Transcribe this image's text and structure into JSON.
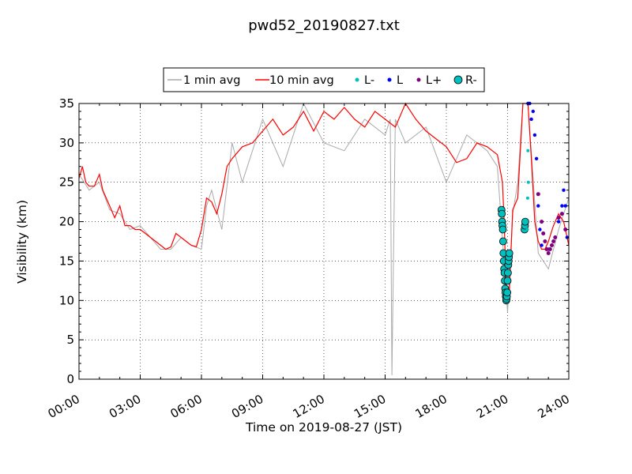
{
  "chart_data": {
    "type": "line",
    "title": "pwd52_20190827.txt",
    "xlabel": "Time on 2019-08-27 (JST)",
    "ylabel": "Visibility (km)",
    "xlim": [
      "00:00",
      "24:00"
    ],
    "ylim": [
      0,
      35
    ],
    "grid": true,
    "legend_position": "top-center",
    "x_ticks": [
      "00:00",
      "03:00",
      "06:00",
      "09:00",
      "12:00",
      "15:00",
      "18:00",
      "21:00",
      "24:00"
    ],
    "y_ticks": [
      "0",
      "5",
      "10",
      "15",
      "20",
      "25",
      "30",
      "35"
    ],
    "legend": [
      "1 min avg",
      "10 min avg",
      "L-",
      "L",
      "L+",
      "R-"
    ],
    "colors": {
      "one_min": "#a9a9a9",
      "ten_min": "#ff0000",
      "L_minus": "#00bfbf",
      "L": "#0000ff",
      "L_plus": "#800080",
      "R_minus": "#00bfbf"
    },
    "series": [
      {
        "name": "10 min avg",
        "x": [
          "00:00",
          "00:10",
          "00:20",
          "00:30",
          "00:45",
          "01:00",
          "01:10",
          "01:30",
          "01:45",
          "02:00",
          "02:15",
          "02:30",
          "02:45",
          "03:00",
          "03:15",
          "03:30",
          "03:45",
          "04:00",
          "04:15",
          "04:30",
          "04:45",
          "05:00",
          "05:15",
          "05:30",
          "05:45",
          "06:00",
          "06:15",
          "06:30",
          "06:45",
          "07:00",
          "07:15",
          "07:30",
          "08:00",
          "08:30",
          "09:00",
          "09:30",
          "10:00",
          "10:30",
          "11:00",
          "11:30",
          "12:00",
          "12:30",
          "13:00",
          "13:30",
          "14:00",
          "14:30",
          "15:00",
          "15:30",
          "16:00",
          "16:30",
          "17:00",
          "17:30",
          "18:00",
          "18:30",
          "19:00",
          "19:30",
          "20:00",
          "20:30",
          "20:45",
          "20:50",
          "20:55",
          "21:00",
          "21:05",
          "21:15",
          "21:30",
          "21:45",
          "22:00",
          "22:10",
          "22:20",
          "22:30",
          "22:40",
          "22:50",
          "23:00",
          "23:15",
          "23:30",
          "23:45",
          "24:00"
        ],
        "values": [
          25.5,
          27.0,
          25.0,
          24.5,
          24.5,
          26.0,
          24.0,
          22.0,
          20.5,
          22.0,
          19.5,
          19.5,
          19.0,
          19.0,
          18.5,
          18.0,
          17.5,
          17.0,
          16.5,
          16.8,
          18.5,
          18.0,
          17.5,
          17.0,
          16.8,
          19.0,
          23.0,
          22.5,
          21.0,
          23.5,
          27.0,
          28.0,
          29.5,
          30.0,
          31.5,
          33.0,
          31.0,
          32.0,
          34.0,
          31.5,
          34.0,
          33.0,
          34.5,
          33.0,
          32.0,
          34.0,
          33.0,
          32.0,
          35.0,
          33.0,
          31.5,
          30.5,
          29.5,
          27.5,
          28.0,
          30.0,
          29.5,
          28.5,
          25.0,
          20.0,
          13.0,
          10.5,
          11.0,
          21.5,
          23.0,
          35.0,
          35.0,
          28.0,
          20.0,
          17.5,
          16.5,
          16.5,
          17.5,
          19.5,
          21.0,
          20.0,
          17.0
        ]
      },
      {
        "name": "1 min avg",
        "x": [
          "00:00",
          "00:30",
          "01:00",
          "01:30",
          "02:00",
          "02:30",
          "03:00",
          "03:30",
          "04:00",
          "04:30",
          "05:00",
          "05:30",
          "06:00",
          "06:15",
          "06:30",
          "07:00",
          "07:30",
          "08:00",
          "09:00",
          "10:00",
          "11:00",
          "12:00",
          "13:00",
          "14:00",
          "15:00",
          "15:15",
          "15:20",
          "15:30",
          "16:00",
          "17:00",
          "18:00",
          "19:00",
          "20:00",
          "20:30",
          "21:00",
          "21:15",
          "21:30",
          "21:45",
          "22:00",
          "22:30",
          "23:00",
          "23:30",
          "24:00"
        ],
        "values": [
          26.0,
          24.0,
          25.0,
          21.5,
          21.0,
          19.0,
          19.5,
          18.0,
          16.5,
          16.5,
          18.0,
          17.0,
          16.5,
          22.0,
          24.0,
          19.0,
          30.0,
          25.0,
          33.0,
          27.0,
          35.0,
          30.0,
          29.0,
          33.0,
          31.0,
          33.0,
          0.5,
          33.0,
          30.0,
          32.0,
          25.0,
          31.0,
          29.0,
          27.0,
          8.5,
          21.0,
          25.0,
          35.0,
          35.0,
          16.0,
          14.0,
          19.0,
          23.0
        ]
      },
      {
        "name": "L-",
        "x": [
          "21:58",
          "21:59",
          "22:00",
          "22:01"
        ],
        "values": [
          19.0,
          23.0,
          29.0,
          25.0
        ]
      },
      {
        "name": "L",
        "x": [
          "22:00",
          "22:05",
          "22:10",
          "22:15",
          "22:20",
          "22:25",
          "22:30",
          "22:35",
          "22:40",
          "23:00",
          "23:10",
          "23:20",
          "23:30",
          "23:40",
          "23:45",
          "23:50",
          "23:55"
        ],
        "values": [
          35.0,
          35.0,
          33.0,
          34.0,
          31.0,
          28.0,
          22.0,
          19.0,
          17.0,
          16.5,
          17.0,
          18.0,
          20.0,
          22.0,
          24.0,
          22.0,
          18.0
        ]
      },
      {
        "name": "L+",
        "x": [
          "22:30",
          "22:40",
          "22:45",
          "22:50",
          "22:55",
          "23:00",
          "23:05",
          "23:10",
          "23:15",
          "23:20",
          "23:30",
          "23:40",
          "23:50"
        ],
        "values": [
          23.5,
          20.0,
          18.5,
          17.5,
          16.5,
          16.0,
          16.5,
          17.0,
          17.5,
          18.0,
          20.5,
          21.0,
          19.0
        ]
      },
      {
        "name": "R-",
        "x": [
          "20:42",
          "20:43",
          "20:44",
          "20:45",
          "20:46",
          "20:47",
          "20:48",
          "20:49",
          "20:50",
          "20:51",
          "20:52",
          "20:53",
          "20:54",
          "20:55",
          "20:56",
          "20:57",
          "20:58",
          "20:59",
          "21:00",
          "21:01",
          "21:02",
          "21:03",
          "21:04",
          "21:05",
          "21:50",
          "21:51",
          "21:52"
        ],
        "values": [
          21.5,
          21.0,
          20.0,
          19.5,
          19.0,
          17.5,
          16.0,
          15.0,
          14.0,
          13.5,
          12.5,
          11.5,
          11.0,
          10.5,
          10.0,
          10.2,
          10.5,
          11.0,
          12.5,
          13.5,
          14.5,
          15.0,
          15.5,
          16.0,
          19.0,
          19.5,
          20.0
        ]
      }
    ]
  }
}
